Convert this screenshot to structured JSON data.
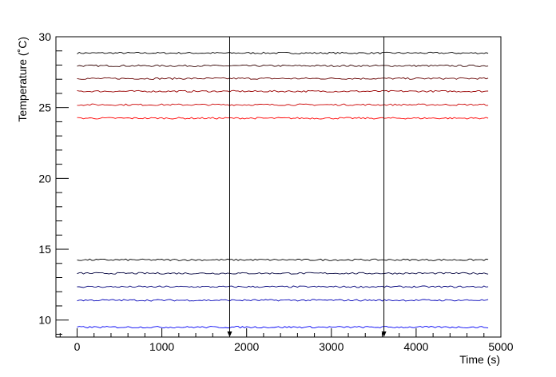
{
  "chart_data": {
    "type": "line",
    "title": "",
    "xlabel": "Time (s)",
    "ylabel": "Temperature (˚C)",
    "xlim": [
      -250,
      5000
    ],
    "ylim": [
      8.8,
      30
    ],
    "x_ticks": [
      0,
      1000,
      2000,
      3000,
      4000,
      5000
    ],
    "y_ticks": [
      10,
      15,
      20,
      25,
      30
    ],
    "x_range_of_series": [
      0,
      4850
    ],
    "grid": false,
    "legend": "none",
    "series": [
      {
        "values": [
          28.85
        ],
        "color": "#000000"
      },
      {
        "values": [
          27.95
        ],
        "color": "#330000"
      },
      {
        "values": [
          27.05
        ],
        "color": "#660000"
      },
      {
        "values": [
          26.15
        ],
        "color": "#990000"
      },
      {
        "values": [
          25.2
        ],
        "color": "#cc0000"
      },
      {
        "values": [
          24.25
        ],
        "color": "#ff0000"
      },
      {
        "values": [
          14.25
        ],
        "color": "#000000"
      },
      {
        "values": [
          13.3
        ],
        "color": "#00003d"
      },
      {
        "values": [
          12.35
        ],
        "color": "#00007a"
      },
      {
        "values": [
          11.4
        ],
        "color": "#0000b8"
      },
      {
        "values": [
          9.5
        ],
        "color": "#0000f5"
      }
    ],
    "vertical_markers": [
      1800,
      3620
    ]
  }
}
